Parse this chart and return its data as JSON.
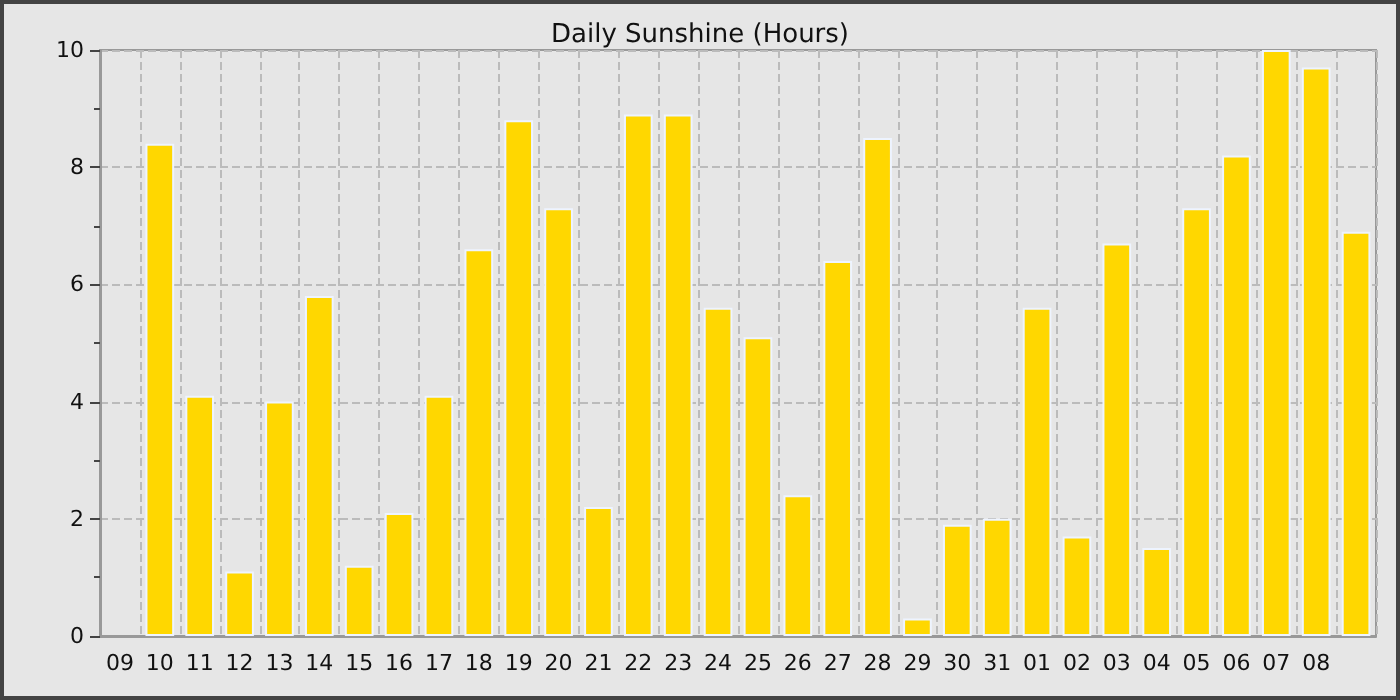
{
  "chart_data": {
    "type": "bar",
    "title": "Daily Sunshine (Hours)",
    "categories": [
      "09",
      "10",
      "11",
      "12",
      "13",
      "14",
      "15",
      "16",
      "17",
      "18",
      "19",
      "20",
      "21",
      "22",
      "23",
      "24",
      "25",
      "26",
      "27",
      "28",
      "29",
      "30",
      "31",
      "01",
      "02",
      "03",
      "04",
      "05",
      "06",
      "07",
      "08",
      null
    ],
    "series": [
      {
        "color": "#ffd700",
        "values": [
          null,
          8.4,
          4.1,
          1.1,
          4.0,
          5.8,
          1.2,
          2.1,
          4.1,
          6.6,
          8.8,
          7.3,
          2.2,
          8.9,
          8.9,
          5.6,
          5.1,
          2.4,
          6.4,
          8.5,
          0.3,
          1.9,
          2.0,
          5.6,
          1.7,
          6.7,
          1.5,
          7.3,
          8.2,
          10.0,
          9.7,
          6.9
        ]
      }
    ],
    "ylim": [
      0,
      10
    ],
    "yticks": [
      0,
      2,
      4,
      6,
      8,
      10
    ],
    "grid": true
  }
}
